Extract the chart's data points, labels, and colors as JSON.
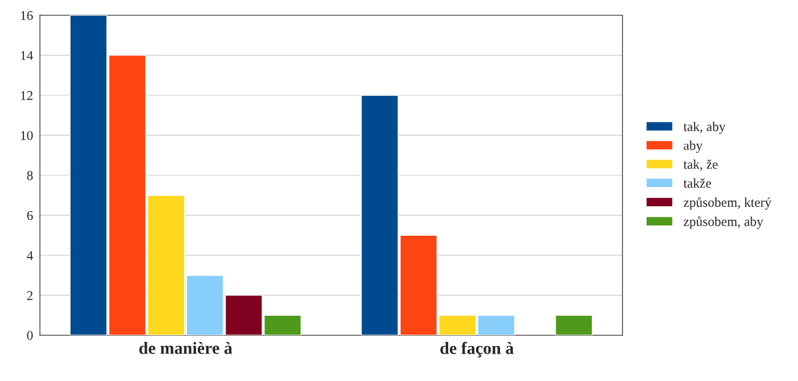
{
  "chart_data": {
    "type": "bar",
    "categories": [
      "de manière à",
      "de façon à"
    ],
    "series": [
      {
        "name": "tak, aby",
        "color": "#004a8f",
        "values": [
          16,
          12
        ]
      },
      {
        "name": "aby",
        "color": "#ff4512",
        "values": [
          14,
          5
        ]
      },
      {
        "name": "tak, že",
        "color": "#ffd820",
        "values": [
          7,
          1
        ]
      },
      {
        "name": "takže",
        "color": "#87cefa",
        "values": [
          3,
          1
        ]
      },
      {
        "name": "způsobem, který",
        "color": "#800020",
        "values": [
          2,
          null
        ]
      },
      {
        "name": "způsobem, aby",
        "color": "#4f9a1a",
        "values": [
          1,
          1
        ]
      }
    ],
    "ylim": [
      0,
      16
    ],
    "yticks": [
      0,
      2,
      4,
      6,
      8,
      10,
      12,
      14,
      16
    ],
    "grid": "y",
    "legend": "right"
  }
}
